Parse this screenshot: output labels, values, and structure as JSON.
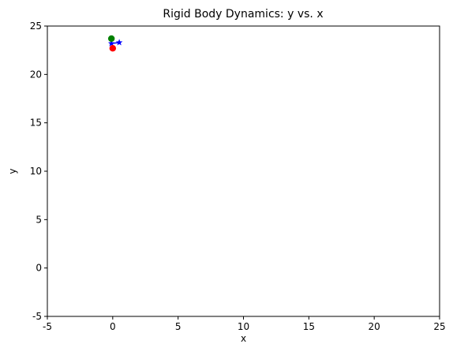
{
  "chart_data": {
    "type": "scatter",
    "title": "Rigid Body Dynamics: y vs. x",
    "xlabel": "x",
    "ylabel": "y",
    "xlim": [
      -5,
      25
    ],
    "ylim": [
      -5,
      25
    ],
    "xticks": [
      -5,
      0,
      5,
      10,
      15,
      20,
      25
    ],
    "yticks": [
      -5,
      0,
      5,
      10,
      15,
      20,
      25
    ],
    "grid": false,
    "legend": "none",
    "series": [
      {
        "marker": "line-star",
        "color": "#0000ff",
        "points": [
          {
            "x": -0.1,
            "y": 23.2
          },
          {
            "x": 0.5,
            "y": 23.3
          }
        ]
      },
      {
        "marker": "circle",
        "color": "#008000",
        "points": [
          {
            "x": -0.1,
            "y": 23.7
          }
        ]
      },
      {
        "marker": "circle",
        "color": "#ff0000",
        "points": [
          {
            "x": 0.0,
            "y": 22.7
          }
        ]
      }
    ]
  }
}
